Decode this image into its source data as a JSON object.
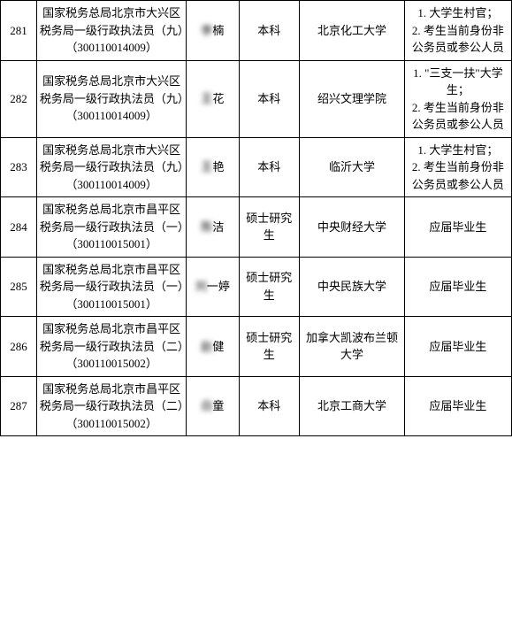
{
  "table": {
    "columns": {
      "index_width": 36,
      "position_width": 148,
      "name_width": 52,
      "education_width": 60,
      "school_width": 104,
      "status_width": 106
    },
    "border_color": "#000000",
    "background_color": "#ffffff",
    "font_size": 13,
    "rows": [
      {
        "index": "281",
        "position": "国家税务总局北京市大兴区税务局一级行政执法员（九）（300110014009）",
        "name_prefix": "李",
        "name_suffix": "楠",
        "education": "本科",
        "school": "北京化工大学",
        "status": "1. 大学生村官；\n2. 考生当前身份非公务员或参公人员"
      },
      {
        "index": "282",
        "position": "国家税务总局北京市大兴区税务局一级行政执法员（九）（300110014009）",
        "name_prefix": "王",
        "name_suffix": "花",
        "education": "本科",
        "school": "绍兴文理学院",
        "status": "1. \"三支一扶\"大学生；\n2. 考生当前身份非公务员或参公人员"
      },
      {
        "index": "283",
        "position": "国家税务总局北京市大兴区税务局一级行政执法员（九）（300110014009）",
        "name_prefix": "王",
        "name_suffix": "艳",
        "education": "本科",
        "school": "临沂大学",
        "status": "1. 大学生村官；\n2. 考生当前身份非公务员或参公人员"
      },
      {
        "index": "284",
        "position": "国家税务总局北京市昌平区税务局一级行政执法员（一）（300110015001）",
        "name_prefix": "陈",
        "name_suffix": "洁",
        "education": "硕士研究生",
        "school": "中央财经大学",
        "status": "应届毕业生"
      },
      {
        "index": "285",
        "position": "国家税务总局北京市昌平区税务局一级行政执法员（一）（300110015001）",
        "name_prefix": "刘",
        "name_suffix": "一婷",
        "education": "硕士研究生",
        "school": "中央民族大学",
        "status": "应届毕业生"
      },
      {
        "index": "286",
        "position": "国家税务总局北京市昌平区税务局一级行政执法员（二）（300110015002）",
        "name_prefix": "赵",
        "name_suffix": "健",
        "education": "硕士研究生",
        "school": "加拿大凯波布兰顿大学",
        "status": "应届毕业生"
      },
      {
        "index": "287",
        "position": "国家税务总局北京市昌平区税务局一级行政执法员（二）（300110015002）",
        "name_prefix": "白",
        "name_suffix": "童",
        "education": "本科",
        "school": "北京工商大学",
        "status": "应届毕业生"
      }
    ]
  }
}
